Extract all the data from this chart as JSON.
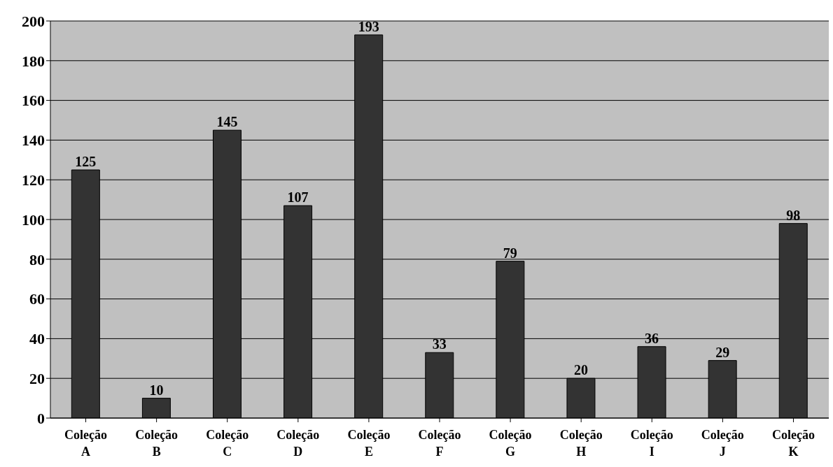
{
  "chart_data": {
    "type": "bar",
    "categories": [
      "Coleção A",
      "Coleção B",
      "Coleção C",
      "Coleção D",
      "Coleção E",
      "Coleção F",
      "Coleção G",
      "Coleção H",
      "Coleção I",
      "Coleção J",
      "Coleção K"
    ],
    "values": [
      125,
      10,
      145,
      107,
      193,
      33,
      79,
      20,
      36,
      29,
      98
    ],
    "color": "#333333",
    "ylim": [
      0,
      200
    ],
    "yticks": [
      0,
      20,
      40,
      60,
      80,
      100,
      120,
      140,
      160,
      180,
      200
    ],
    "grid": "y",
    "data_labels": true
  }
}
